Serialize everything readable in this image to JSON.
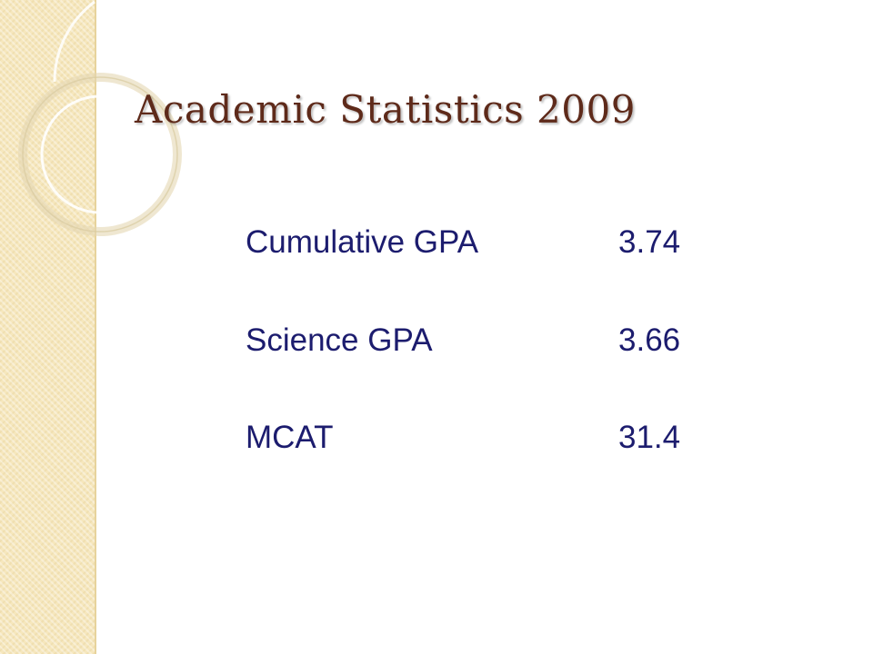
{
  "slide": {
    "title": "Academic Statistics 2009",
    "rows": [
      [
        "Cumulative GPA",
        3.74
      ],
      [
        "Science GPA",
        3.66
      ],
      [
        "MCAT",
        31.4
      ]
    ]
  }
}
